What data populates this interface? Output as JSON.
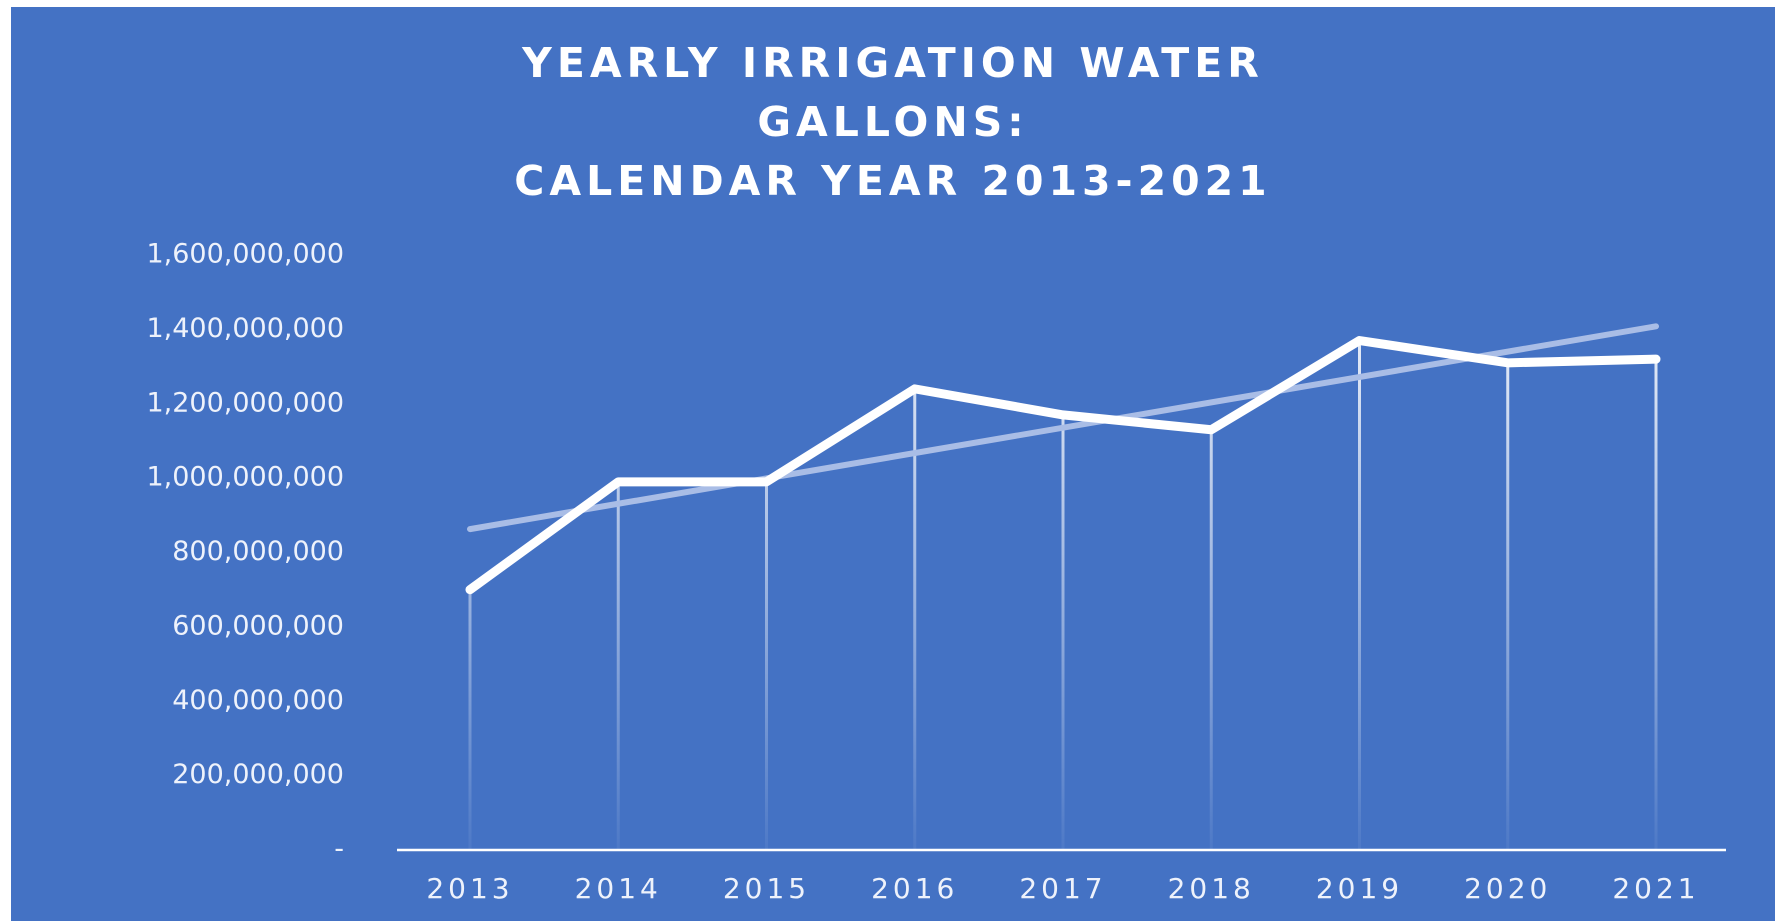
{
  "chart_data": {
    "type": "line",
    "title": [
      "YEARLY IRRIGATION WATER",
      "GALLONS:",
      "CALENDAR YEAR 2013-2021"
    ],
    "categories": [
      "2013",
      "2014",
      "2015",
      "2016",
      "2017",
      "2018",
      "2019",
      "2020",
      "2021"
    ],
    "values": [
      700000000,
      990000000,
      990000000,
      1240000000,
      1170000000,
      1130000000,
      1370000000,
      1310000000,
      1320000000
    ],
    "color": "#ffffff",
    "background": "#4472c4",
    "drop_lines": true,
    "trendline": "linear",
    "trendline_color": "#a9bde6",
    "grid": false,
    "ylim": [
      0,
      1600000000
    ],
    "yticks": [
      {
        "value": 0,
        "label": "-"
      },
      {
        "value": 200000000,
        "label": "200,000,000"
      },
      {
        "value": 400000000,
        "label": "400,000,000"
      },
      {
        "value": 600000000,
        "label": "600,000,000"
      },
      {
        "value": 800000000,
        "label": "800,000,000"
      },
      {
        "value": 1000000000,
        "label": "1,000,000,000"
      },
      {
        "value": 1200000000,
        "label": "1,200,000,000"
      },
      {
        "value": 1400000000,
        "label": "1,400,000,000"
      },
      {
        "value": 1600000000,
        "label": "1,600,000,000"
      }
    ]
  }
}
